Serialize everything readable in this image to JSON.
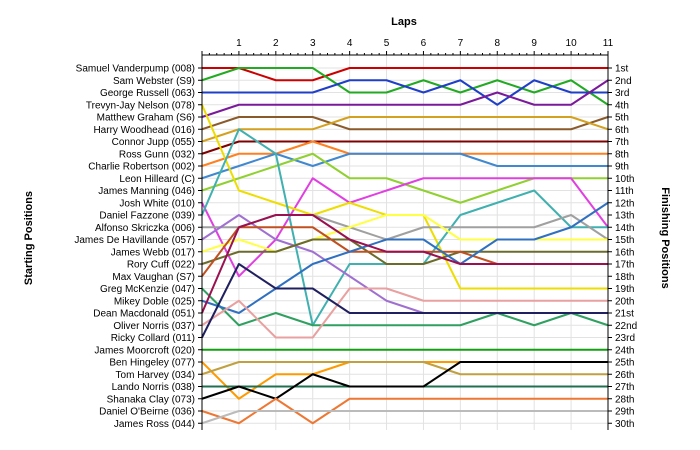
{
  "chart_data": {
    "type": "line",
    "title": "Laps",
    "xlabel": "Laps",
    "ylabel_left": "Starting Positions",
    "ylabel_right": "Finishing Positions",
    "x_ticks": [
      "1",
      "2",
      "3",
      "4",
      "5",
      "6",
      "7",
      "8",
      "9",
      "10",
      "11"
    ],
    "xlim": [
      0,
      11
    ],
    "ylim": [
      30,
      1
    ],
    "y_inverted": true,
    "grid": true,
    "start_labels": [
      "Samuel Vanderpump (008)",
      "Sam Webster (S9)",
      "George Russell (063)",
      "Trevyn-Jay Nelson (078)",
      "Matthew Graham (S6)",
      "Harry Woodhead (016)",
      "Connor Jupp (055)",
      "Ross Gunn (032)",
      "Charlie Robertson (002)",
      "Leon Hilleard (C)",
      "James Manning (046)",
      "Josh White (010)",
      "Daniel Fazzone (039)",
      "Alfonso Skriczka (006)",
      "James De Havillande (057)",
      "James Webb (017)",
      "Rory Cuff (022)",
      "Max Vaughan (S7)",
      "Greg McKenzie (047)",
      "Mikey Doble (025)",
      "Dean Macdonald (051)",
      "Oliver Norris (037)",
      "Ricky Collard (011)",
      "James Moorcroft (020)",
      "Ben Hingeley (077)",
      "Tom Harvey (034)",
      "Lando Norris (038)",
      "Shanaka Clay (073)",
      "Daniel O'Beirne (036)",
      "James Ross (044)"
    ],
    "finish_labels": [
      "1st",
      "2nd",
      "3rd",
      "4th",
      "5th",
      "6th",
      "7th",
      "8th",
      "9th",
      "10th",
      "11th",
      "12th",
      "13th",
      "14th",
      "15th",
      "16th",
      "17th",
      "18th",
      "19th",
      "20th",
      "21st",
      "22nd",
      "23rd",
      "24th",
      "25th",
      "26th",
      "27th",
      "28th",
      "29th",
      "30th"
    ],
    "series": [
      {
        "color": "#cc0000",
        "values": [
          1,
          1,
          2,
          2,
          1,
          1,
          1,
          1,
          1,
          1,
          1,
          1
        ]
      },
      {
        "color": "#22aa22",
        "values": [
          2,
          1,
          1,
          1,
          3,
          3,
          2,
          3,
          2,
          3,
          2,
          4
        ]
      },
      {
        "color": "#1f3fc8",
        "values": [
          3,
          3,
          3,
          3,
          2,
          2,
          3,
          2,
          4,
          2,
          3,
          3
        ]
      },
      {
        "color": "#7a1a9a",
        "values": [
          5,
          4,
          4,
          4,
          4,
          4,
          4,
          4,
          3,
          4,
          4,
          2
        ]
      },
      {
        "color": "#8b5a2b",
        "values": [
          6,
          5,
          5,
          5,
          6,
          6,
          6,
          6,
          6,
          6,
          6,
          5
        ]
      },
      {
        "color": "#d4a020",
        "values": [
          7,
          6,
          6,
          6,
          5,
          5,
          5,
          5,
          5,
          5,
          5,
          6
        ]
      },
      {
        "color": "#7f0000",
        "values": [
          8,
          7,
          7,
          7,
          7,
          7,
          7,
          7,
          7,
          7,
          7,
          7
        ]
      },
      {
        "color": "#ff8020",
        "values": [
          9,
          8,
          8,
          7,
          8,
          8,
          8,
          8,
          8,
          8,
          8,
          8
        ]
      },
      {
        "color": "#4088d0",
        "values": [
          10,
          9,
          8,
          9,
          8,
          8,
          8,
          8,
          9,
          9,
          9,
          9
        ]
      },
      {
        "color": "#90d030",
        "values": [
          11,
          10,
          9,
          8,
          10,
          10,
          11,
          12,
          11,
          10,
          10,
          10
        ]
      },
      {
        "color": "#e040e0",
        "values": [
          12,
          18,
          15,
          10,
          12,
          11,
          10,
          10,
          10,
          10,
          10,
          14
        ]
      },
      {
        "color": "#eedd00",
        "values": [
          4,
          11,
          12,
          13,
          12,
          13,
          13,
          19,
          19,
          19,
          19,
          19
        ]
      },
      {
        "color": "#40b0b0",
        "values": [
          13,
          6,
          8,
          22,
          17,
          17,
          17,
          13,
          12,
          11,
          14,
          14
        ]
      },
      {
        "color": "#a0a0a0",
        "values": [
          14,
          14,
          13,
          13,
          14,
          15,
          14,
          14,
          14,
          14,
          13,
          15
        ]
      },
      {
        "color": "#ffff44",
        "values": [
          16,
          15,
          16,
          15,
          14,
          13,
          13,
          15,
          15,
          15,
          15,
          15
        ]
      },
      {
        "color": "#a070d0",
        "values": [
          15,
          13,
          15,
          16,
          18,
          20,
          21,
          21,
          21,
          21,
          21,
          21
        ]
      },
      {
        "color": "#6b6b2b",
        "values": [
          17,
          16,
          16,
          15,
          15,
          17,
          17,
          16,
          16,
          16,
          16,
          16
        ]
      },
      {
        "color": "#c05020",
        "values": [
          18,
          14,
          14,
          14,
          16,
          16,
          16,
          16,
          17,
          17,
          17,
          17
        ]
      },
      {
        "color": "#30a060",
        "values": [
          19,
          22,
          21,
          22,
          22,
          22,
          22,
          22,
          21,
          22,
          21,
          22
        ]
      },
      {
        "color": "#3070c0",
        "values": [
          20,
          21,
          19,
          17,
          16,
          15,
          15,
          17,
          15,
          15,
          14,
          12
        ]
      },
      {
        "color": "#9a1050",
        "values": [
          21,
          14,
          13,
          13,
          15,
          16,
          16,
          17,
          17,
          17,
          17,
          17
        ]
      },
      {
        "color": "#e8a0a0",
        "values": [
          22,
          20,
          23,
          23,
          19,
          19,
          20,
          20,
          20,
          20,
          20,
          20
        ]
      },
      {
        "color": "#202060",
        "values": [
          23,
          17,
          19,
          19,
          21,
          21,
          21,
          21,
          21,
          21,
          21,
          21
        ]
      },
      {
        "color": "#10a010",
        "values": [
          24,
          24,
          24,
          24,
          24,
          24,
          24,
          24,
          24,
          24,
          24,
          24
        ]
      },
      {
        "color": "#ff9900",
        "values": [
          25,
          28,
          26,
          26,
          25,
          25,
          25,
          25,
          25,
          25,
          25,
          25
        ]
      },
      {
        "color": "#c0a040",
        "values": [
          26,
          25,
          25,
          25,
          25,
          25,
          25,
          26,
          26,
          26,
          26,
          26
        ]
      },
      {
        "color": "#207050",
        "values": [
          27,
          27,
          27,
          27,
          27,
          27,
          27,
          27,
          27,
          27,
          27,
          27
        ]
      },
      {
        "color": "#000000",
        "values": [
          28,
          27,
          28,
          26,
          27,
          27,
          27,
          25,
          25,
          25,
          25,
          25
        ]
      },
      {
        "color": "#ee7733",
        "values": [
          29,
          30,
          28,
          30,
          28,
          28,
          28,
          28,
          28,
          28,
          28,
          28
        ]
      },
      {
        "color": "#bbbbbb",
        "values": [
          30,
          29,
          29,
          29,
          29,
          29,
          29,
          29,
          29,
          29,
          29,
          29
        ]
      }
    ]
  }
}
